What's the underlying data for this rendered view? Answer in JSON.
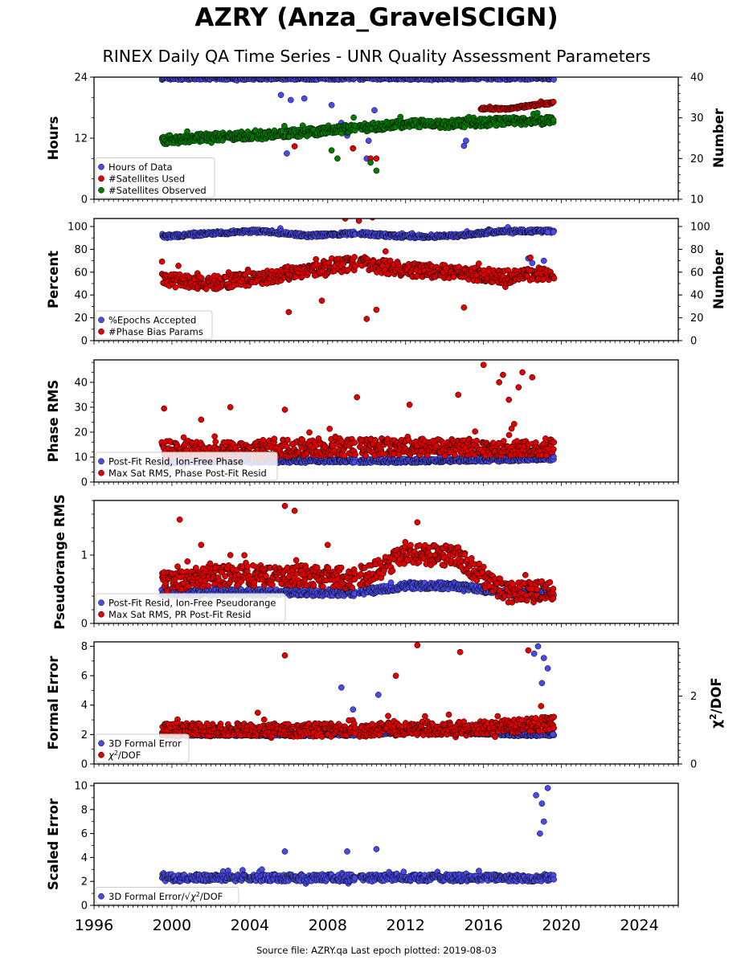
{
  "title": "AZRY (Anza_GravelSCIGN)",
  "subtitle": "RINEX Daily QA Time Series - UNR Quality Assessment Parameters",
  "footer": "Source file: AZRY.qa Last epoch plotted: 2019-08-03",
  "colors": {
    "blue": "#4a4ae8",
    "red": "#e00000",
    "green": "#007a00",
    "edge": "#000000"
  },
  "chart_data": [
    {
      "type": "scatter",
      "ylabel": "Hours",
      "y2label": "Number",
      "ylim": [
        0,
        24
      ],
      "y2lim": [
        10,
        40
      ],
      "yticks": [
        "0",
        "12",
        "24"
      ],
      "y2ticks": [
        "10",
        "20",
        "30",
        "40"
      ],
      "legend": "bottom-left",
      "series": [
        {
          "name": "Hours of Data",
          "color": "blue",
          "axis": "left",
          "typical": [
            23.8,
            23.8,
            23.8,
            23.8,
            23.8,
            23.8,
            23.8,
            23.8,
            23.8
          ],
          "spread": 0.3,
          "outliers": [
            [
              2005.6,
              20.5
            ],
            [
              2006.1,
              19.5
            ],
            [
              2006.8,
              19.8
            ],
            [
              2008.2,
              18.5
            ],
            [
              2008.7,
              15.0
            ],
            [
              2009.0,
              12.5
            ],
            [
              2009.3,
              10.0
            ],
            [
              2010.1,
              11.5
            ],
            [
              2010.4,
              17.5
            ],
            [
              2011.0,
              14.0
            ],
            [
              2015.0,
              10.5
            ],
            [
              2015.1,
              11.5
            ],
            [
              2005.9,
              9.0
            ],
            [
              2010.0,
              8.0
            ]
          ]
        },
        {
          "name": "#Satellites Used",
          "color": "red",
          "axis": "right",
          "typical": [
            null,
            null,
            null,
            null,
            null,
            null,
            null,
            32.2,
            33.7
          ],
          "spread": 0.3,
          "outliers": [
            [
              2006.3,
              23.0
            ],
            [
              2010.2,
              20.0
            ],
            [
              2010.5,
              20.0
            ],
            [
              2009.3,
              22.5
            ]
          ]
        },
        {
          "name": "#Satellites Observed",
          "color": "green",
          "axis": "right",
          "typical": [
            24.5,
            25.3,
            25.8,
            26.5,
            27.5,
            28.5,
            28.5,
            29.2,
            29.2
          ],
          "spread": 1.0,
          "outliers": [
            [
              2008.5,
              20.0
            ],
            [
              2010.2,
              19.0
            ],
            [
              2010.5,
              17.0
            ],
            [
              2008.2,
              22.0
            ]
          ]
        }
      ]
    },
    {
      "type": "scatter",
      "ylabel": "Percent",
      "y2label": "Number",
      "ylim": [
        0,
        107
      ],
      "y2lim": [
        0,
        107
      ],
      "yticks": [
        "0",
        "20",
        "40",
        "60",
        "80",
        "100"
      ],
      "y2ticks": [
        "0",
        "20",
        "40",
        "60",
        "80",
        "100"
      ],
      "legend": "bottom-left",
      "series": [
        {
          "name": "%Epochs Accepted",
          "color": "blue",
          "axis": "left",
          "typical": [
            91,
            94,
            96,
            92,
            94,
            91,
            92,
            96,
            96
          ],
          "spread": 1.5,
          "outliers": [
            [
              2018.3,
              72
            ],
            [
              2018.5,
              68
            ],
            [
              2019.1,
              70
            ],
            [
              2019.3,
              95
            ]
          ]
        },
        {
          "name": "#Phase Bias Params",
          "color": "red",
          "axis": "right",
          "typical": [
            54,
            50,
            55,
            62,
            68,
            62,
            60,
            56,
            58
          ],
          "spread": 6,
          "outliers": [
            [
              2006.0,
              25
            ],
            [
              2010.0,
              19
            ],
            [
              2010.5,
              27
            ],
            [
              2015.0,
              29
            ],
            [
              2007.7,
              35
            ],
            [
              2008.9,
              107
            ],
            [
              2010.3,
              108
            ],
            [
              2009.6,
              105
            ]
          ]
        }
      ]
    },
    {
      "type": "scatter",
      "ylabel": "Phase RMS",
      "ylim": [
        0,
        49
      ],
      "yticks": [
        "0",
        "10",
        "20",
        "30",
        "40"
      ],
      "legend": "bottom-left",
      "series": [
        {
          "name": "Post-Fit Resid, Ion-Free Phase",
          "color": "blue",
          "typical": [
            8.0,
            8.5,
            8.5,
            8.5,
            8.5,
            8.5,
            8.8,
            9.0,
            9.5
          ],
          "spread": 0.8,
          "outliers": []
        },
        {
          "name": "Max Sat RMS, Phase Post-Fit Resid",
          "color": "red",
          "typical": [
            13,
            13,
            13,
            14,
            14,
            14,
            14,
            14,
            14
          ],
          "spread": 3.5,
          "outliers": [
            [
              1999.6,
              29.5
            ],
            [
              2001.5,
              25
            ],
            [
              2003.0,
              30
            ],
            [
              2005.8,
              29
            ],
            [
              2009.5,
              34
            ],
            [
              2012.2,
              31
            ],
            [
              2014.7,
              35
            ],
            [
              2016.0,
              47
            ],
            [
              2016.8,
              40
            ],
            [
              2017.0,
              43
            ],
            [
              2017.3,
              33
            ],
            [
              2017.8,
              38
            ],
            [
              2018.0,
              44
            ],
            [
              2018.5,
              42
            ]
          ]
        }
      ]
    },
    {
      "type": "scatter",
      "ylabel": "Pseudorange RMS",
      "ylim": [
        0,
        1.8
      ],
      "yticks": [
        "0",
        "1"
      ],
      "legend": "bottom-left",
      "series": [
        {
          "name": "Post-Fit Resid, Ion-Free Pseudorange",
          "color": "blue",
          "typical": [
            0.45,
            0.45,
            0.45,
            0.45,
            0.45,
            0.55,
            0.55,
            0.45,
            0.43
          ],
          "spread": 0.05,
          "outliers": []
        },
        {
          "name": "Max Sat RMS, PR Post-Fit Resid",
          "color": "red",
          "typical": [
            0.6,
            0.7,
            0.7,
            0.7,
            0.65,
            1.0,
            1.0,
            0.45,
            0.5
          ],
          "spread": 0.15,
          "outliers": [
            [
              2000.4,
              1.52
            ],
            [
              2005.8,
              1.72
            ],
            [
              2006.3,
              1.65
            ],
            [
              2001.5,
              1.15
            ],
            [
              2003.0,
              1.0
            ],
            [
              2008.0,
              1.15
            ],
            [
              2012.6,
              1.48
            ]
          ]
        }
      ]
    },
    {
      "type": "scatter",
      "ylabel": "Formal Error",
      "y2label": "χ²/DOF",
      "ylim": [
        0,
        8.3
      ],
      "y2lim": [
        0,
        3.6
      ],
      "yticks": [
        "0",
        "2",
        "4",
        "6",
        "8"
      ],
      "y2ticks": [
        "0",
        "2"
      ],
      "legend": "bottom-left",
      "series": [
        {
          "name": "3D Formal Error",
          "color": "blue",
          "axis": "left",
          "typical": [
            2.0,
            2.0,
            2.0,
            2.0,
            2.0,
            2.2,
            2.2,
            2.0,
            2.0
          ],
          "spread": 0.1,
          "outliers": [
            [
              2008.7,
              5.2
            ],
            [
              2009.3,
              3.7
            ],
            [
              2010.6,
              4.7
            ],
            [
              2018.6,
              7.5
            ],
            [
              2018.8,
              8.0
            ],
            [
              2019.1,
              7.2
            ],
            [
              2019.3,
              6.5
            ],
            [
              2019.0,
              5.5
            ]
          ]
        },
        {
          "name": "χ²/DOF",
          "color": "red",
          "axis": "right",
          "typical": [
            1.0,
            1.0,
            1.0,
            1.0,
            1.0,
            1.05,
            1.05,
            1.1,
            1.2
          ],
          "spread": 0.2,
          "outliers": [
            [
              2005.8,
              3.2
            ],
            [
              2012.6,
              3.5
            ],
            [
              2011.5,
              2.6
            ],
            [
              2014.8,
              3.3
            ],
            [
              2018.3,
              3.35
            ]
          ]
        }
      ]
    },
    {
      "type": "scatter",
      "ylabel": "Scaled Error",
      "ylim": [
        0,
        10.2
      ],
      "yticks": [
        "0",
        "2",
        "4",
        "6",
        "8",
        "10"
      ],
      "legend": "bottom-left",
      "series": [
        {
          "name": "3D Formal Error/√χ²/DOF",
          "color": "blue",
          "typical": [
            2.3,
            2.3,
            2.3,
            2.3,
            2.3,
            2.3,
            2.3,
            2.3,
            2.3
          ],
          "spread": 0.3,
          "outliers": [
            [
              2005.8,
              4.5
            ],
            [
              2009.0,
              4.5
            ],
            [
              2010.5,
              4.7
            ],
            [
              2018.7,
              9.2
            ],
            [
              2019.0,
              8.5
            ],
            [
              2019.3,
              9.8
            ],
            [
              2019.1,
              7.0
            ],
            [
              2018.9,
              6.0
            ]
          ]
        }
      ]
    }
  ],
  "x_axis": {
    "xlim": [
      1996,
      2026
    ],
    "ticks": [
      "1996",
      "2000",
      "2004",
      "2008",
      "2012",
      "2016",
      "2020",
      "2024"
    ],
    "data_range": [
      1999.5,
      2019.6
    ],
    "gap": [
      2009.4,
      2009.6
    ]
  }
}
